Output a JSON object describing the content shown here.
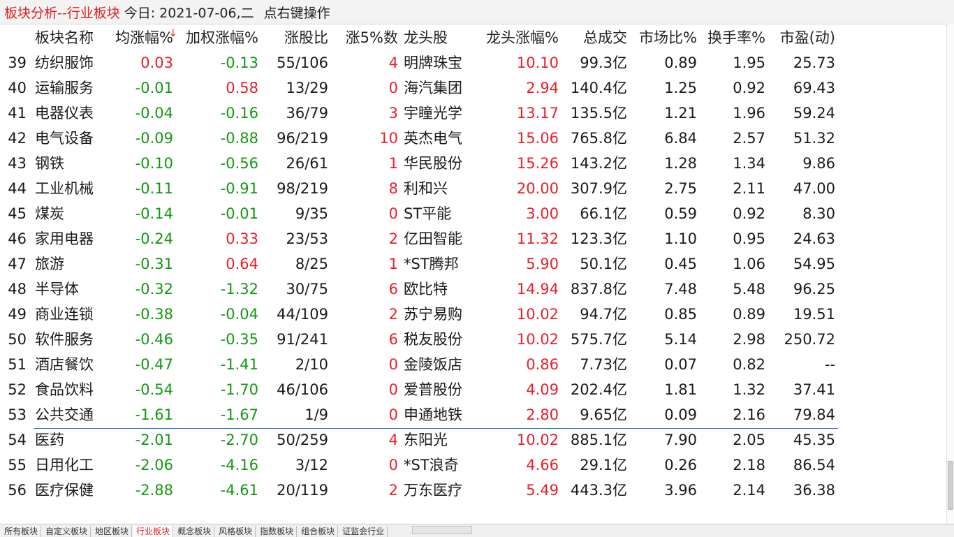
{
  "title": {
    "module": "板块分析--行业板块",
    "date": "今日: 2021-07-06,二",
    "hint": "点右键操作"
  },
  "headers": {
    "name": "板块名称",
    "avg_change": "均涨幅%",
    "sort_indicator": "↓",
    "weighted_change": "加权涨幅%",
    "rise_ratio": "涨股比",
    "up5_count": "涨5%数",
    "leader": "龙头股",
    "leader_change": "龙头涨幅%",
    "volume": "总成交",
    "market_share": "市场比%",
    "turnover": "换手率%",
    "pe": "市盈(动)"
  },
  "colors": {
    "up": "#e8202a",
    "down": "#119911",
    "accent": "#e02020",
    "separator": "#2b6cb0"
  },
  "rows": [
    {
      "num": "39",
      "name": "纺织服饰",
      "avg": "0.03",
      "avg_dir": "up",
      "wavg": "-0.13",
      "wavg_dir": "down",
      "ratio": "55/106",
      "up5": "4",
      "up5_dir": "up",
      "leader": "明牌珠宝",
      "lpct": "10.10",
      "vol": "99.3亿",
      "mkt": "0.89",
      "turn": "1.95",
      "pe": "25.73"
    },
    {
      "num": "40",
      "name": "运输服务",
      "avg": "-0.01",
      "avg_dir": "down",
      "wavg": "0.58",
      "wavg_dir": "up",
      "ratio": "13/29",
      "up5": "0",
      "up5_dir": "up",
      "leader": "海汽集团",
      "lpct": "2.94",
      "vol": "140.4亿",
      "mkt": "1.25",
      "turn": "0.92",
      "pe": "69.43"
    },
    {
      "num": "41",
      "name": "电器仪表",
      "avg": "-0.04",
      "avg_dir": "down",
      "wavg": "-0.16",
      "wavg_dir": "down",
      "ratio": "36/79",
      "up5": "3",
      "up5_dir": "up",
      "leader": "宇瞳光学",
      "lpct": "13.17",
      "vol": "135.5亿",
      "mkt": "1.21",
      "turn": "1.96",
      "pe": "59.24"
    },
    {
      "num": "42",
      "name": "电气设备",
      "avg": "-0.09",
      "avg_dir": "down",
      "wavg": "-0.88",
      "wavg_dir": "down",
      "ratio": "96/219",
      "up5": "10",
      "up5_dir": "up",
      "leader": "英杰电气",
      "lpct": "15.06",
      "vol": "765.8亿",
      "mkt": "6.84",
      "turn": "2.57",
      "pe": "51.32"
    },
    {
      "num": "43",
      "name": "钢铁",
      "avg": "-0.10",
      "avg_dir": "down",
      "wavg": "-0.56",
      "wavg_dir": "down",
      "ratio": "26/61",
      "up5": "1",
      "up5_dir": "up",
      "leader": "华民股份",
      "lpct": "15.26",
      "vol": "143.2亿",
      "mkt": "1.28",
      "turn": "1.34",
      "pe": "9.86"
    },
    {
      "num": "44",
      "name": "工业机械",
      "avg": "-0.11",
      "avg_dir": "down",
      "wavg": "-0.91",
      "wavg_dir": "down",
      "ratio": "98/219",
      "up5": "8",
      "up5_dir": "up",
      "leader": "利和兴",
      "lpct": "20.00",
      "vol": "307.9亿",
      "mkt": "2.75",
      "turn": "2.11",
      "pe": "47.00"
    },
    {
      "num": "45",
      "name": "煤炭",
      "avg": "-0.14",
      "avg_dir": "down",
      "wavg": "-0.01",
      "wavg_dir": "down",
      "ratio": "9/35",
      "up5": "0",
      "up5_dir": "up",
      "leader": "ST平能",
      "lpct": "3.00",
      "vol": "66.1亿",
      "mkt": "0.59",
      "turn": "0.92",
      "pe": "8.30"
    },
    {
      "num": "46",
      "name": "家用电器",
      "avg": "-0.24",
      "avg_dir": "down",
      "wavg": "0.33",
      "wavg_dir": "up",
      "ratio": "23/53",
      "up5": "2",
      "up5_dir": "up",
      "leader": "亿田智能",
      "lpct": "11.32",
      "vol": "123.3亿",
      "mkt": "1.10",
      "turn": "0.95",
      "pe": "24.63"
    },
    {
      "num": "47",
      "name": "旅游",
      "avg": "-0.31",
      "avg_dir": "down",
      "wavg": "0.64",
      "wavg_dir": "up",
      "ratio": "8/25",
      "up5": "1",
      "up5_dir": "up",
      "leader": "*ST腾邦",
      "lpct": "5.90",
      "vol": "50.1亿",
      "mkt": "0.45",
      "turn": "1.06",
      "pe": "54.95"
    },
    {
      "num": "48",
      "name": "半导体",
      "avg": "-0.32",
      "avg_dir": "down",
      "wavg": "-1.32",
      "wavg_dir": "down",
      "ratio": "30/75",
      "up5": "6",
      "up5_dir": "up",
      "leader": "欧比特",
      "lpct": "14.94",
      "vol": "837.8亿",
      "mkt": "7.48",
      "turn": "5.48",
      "pe": "96.25"
    },
    {
      "num": "49",
      "name": "商业连锁",
      "avg": "-0.38",
      "avg_dir": "down",
      "wavg": "-0.04",
      "wavg_dir": "down",
      "ratio": "44/109",
      "up5": "2",
      "up5_dir": "up",
      "leader": "苏宁易购",
      "lpct": "10.02",
      "vol": "94.7亿",
      "mkt": "0.85",
      "turn": "0.89",
      "pe": "19.51"
    },
    {
      "num": "50",
      "name": "软件服务",
      "avg": "-0.46",
      "avg_dir": "down",
      "wavg": "-0.35",
      "wavg_dir": "down",
      "ratio": "91/241",
      "up5": "6",
      "up5_dir": "up",
      "leader": "税友股份",
      "lpct": "10.02",
      "vol": "575.7亿",
      "mkt": "5.14",
      "turn": "2.98",
      "pe": "250.72"
    },
    {
      "num": "51",
      "name": "酒店餐饮",
      "avg": "-0.47",
      "avg_dir": "down",
      "wavg": "-1.41",
      "wavg_dir": "down",
      "ratio": "2/10",
      "up5": "0",
      "up5_dir": "up",
      "leader": "金陵饭店",
      "lpct": "0.86",
      "vol": "7.73亿",
      "mkt": "0.07",
      "turn": "0.82",
      "pe": "--"
    },
    {
      "num": "52",
      "name": "食品饮料",
      "avg": "-0.54",
      "avg_dir": "down",
      "wavg": "-1.70",
      "wavg_dir": "down",
      "ratio": "46/106",
      "up5": "0",
      "up5_dir": "up",
      "leader": "爱普股份",
      "lpct": "4.09",
      "vol": "202.4亿",
      "mkt": "1.81",
      "turn": "1.32",
      "pe": "37.41"
    },
    {
      "num": "53",
      "name": "公共交通",
      "avg": "-1.61",
      "avg_dir": "down",
      "wavg": "-1.67",
      "wavg_dir": "down",
      "ratio": "1/9",
      "up5": "0",
      "up5_dir": "up",
      "leader": "申通地铁",
      "lpct": "2.80",
      "vol": "9.65亿",
      "mkt": "0.09",
      "turn": "2.16",
      "pe": "79.84"
    },
    {
      "num": "54",
      "name": "医药",
      "avg": "-2.01",
      "avg_dir": "down",
      "wavg": "-2.70",
      "wavg_dir": "down",
      "ratio": "50/259",
      "up5": "4",
      "up5_dir": "up",
      "leader": "东阳光",
      "lpct": "10.02",
      "vol": "885.1亿",
      "mkt": "7.90",
      "turn": "2.05",
      "pe": "45.35"
    },
    {
      "num": "55",
      "name": "日用化工",
      "avg": "-2.06",
      "avg_dir": "down",
      "wavg": "-4.16",
      "wavg_dir": "down",
      "ratio": "3/12",
      "up5": "0",
      "up5_dir": "up",
      "leader": "*ST浪奇",
      "lpct": "4.66",
      "vol": "29.1亿",
      "mkt": "0.26",
      "turn": "2.18",
      "pe": "86.54"
    },
    {
      "num": "56",
      "name": "医疗保健",
      "avg": "-2.88",
      "avg_dir": "down",
      "wavg": "-4.61",
      "wavg_dir": "down",
      "ratio": "20/119",
      "up5": "2",
      "up5_dir": "up",
      "leader": "万东医疗",
      "lpct": "5.49",
      "vol": "443.3亿",
      "mkt": "3.96",
      "turn": "2.14",
      "pe": "36.38"
    }
  ],
  "tabs": [
    {
      "label": "所有板块",
      "active": false
    },
    {
      "label": "自定义板块",
      "active": false
    },
    {
      "label": "地区板块",
      "active": false
    },
    {
      "label": "行业板块",
      "active": true
    },
    {
      "label": "概念板块",
      "active": false
    },
    {
      "label": "风格板块",
      "active": false
    },
    {
      "label": "指数板块",
      "active": false
    },
    {
      "label": "组合板块",
      "active": false
    },
    {
      "label": "证监会行业",
      "active": false
    }
  ]
}
